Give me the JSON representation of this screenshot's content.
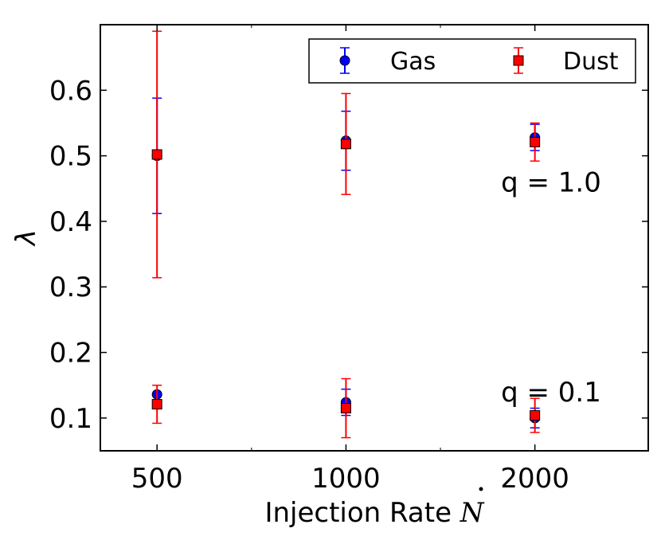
{
  "chart_data": {
    "type": "scatter",
    "title": "",
    "xlabel": "Injection Rate",
    "xlabel_symbol": "N",
    "ylabel": "λ",
    "x_categories": [
      "500",
      "1000",
      "2000"
    ],
    "xlim": [
      -0.3,
      2.6
    ],
    "ylim": [
      0.05,
      0.7
    ],
    "yticks": [
      0.1,
      0.2,
      0.3,
      0.4,
      0.5,
      0.6
    ],
    "ytick_labels": [
      "0.1",
      "0.2",
      "0.3",
      "0.4",
      "0.5",
      "0.6"
    ],
    "grid": false,
    "legend": {
      "position": "top-right",
      "ncol": 2
    },
    "series": [
      {
        "name": "Gas",
        "color": "#0000ff",
        "marker": "circle",
        "groups": [
          {
            "label": "q = 1.0",
            "values": [
              0.5,
              0.523,
              0.528
            ],
            "errors": [
              0.088,
              0.045,
              0.02
            ]
          },
          {
            "label": "q = 0.1",
            "values": [
              0.136,
              0.124,
              0.1
            ],
            "errors": [
              0.0,
              0.02,
              0.015
            ]
          }
        ]
      },
      {
        "name": "Dust",
        "color": "#ff0000",
        "marker": "square",
        "groups": [
          {
            "label": "q = 1.0",
            "values": [
              0.502,
              0.518,
              0.521
            ],
            "errors": [
              0.188,
              0.077,
              0.029
            ]
          },
          {
            "label": "q = 0.1",
            "values": [
              0.121,
              0.115,
              0.104
            ],
            "errors": [
              0.029,
              0.045,
              0.026
            ]
          }
        ]
      }
    ],
    "annotations": [
      {
        "text": "q = 1.0",
        "x": 2.0,
        "y": 0.46
      },
      {
        "text": "q = 0.1",
        "x": 2.0,
        "y": 0.14
      }
    ]
  }
}
